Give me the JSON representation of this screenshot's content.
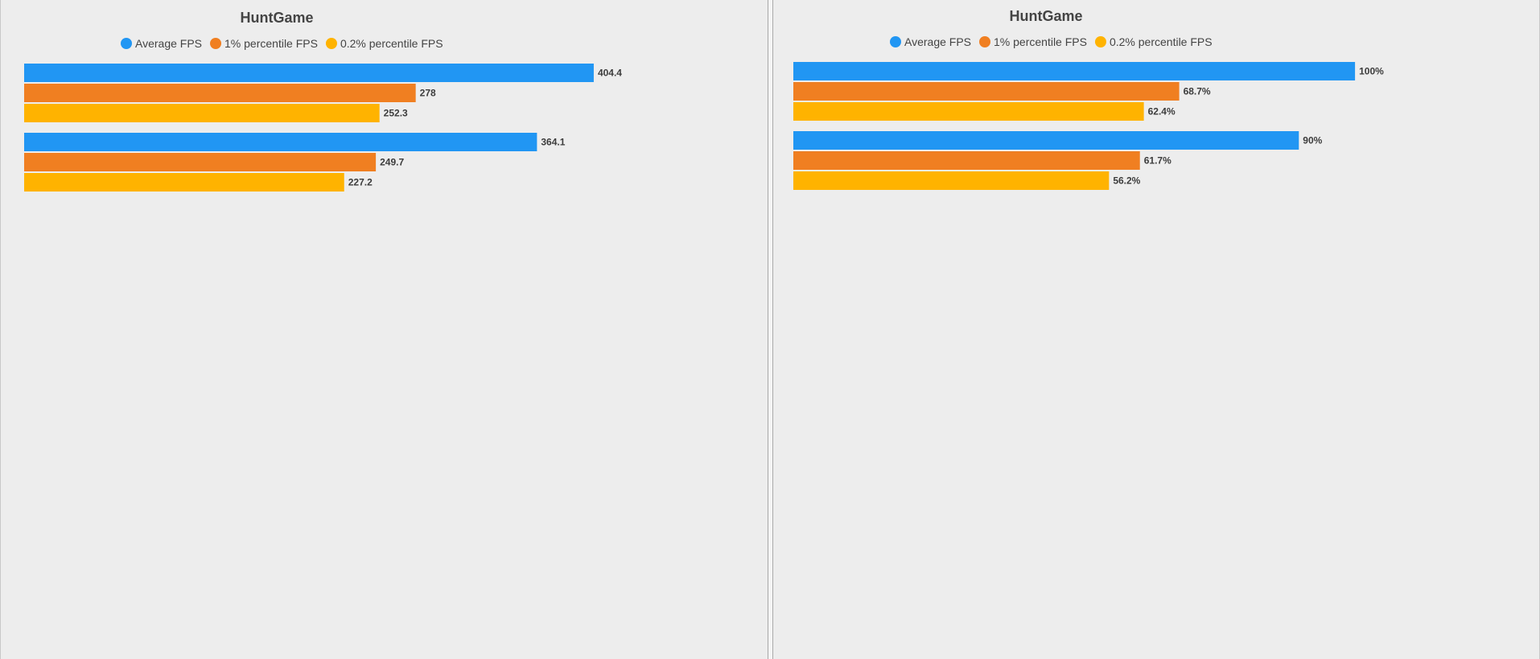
{
  "chart_data": [
    {
      "type": "bar",
      "orientation": "horizontal",
      "title": "HuntGame",
      "legend_position": "top",
      "grid": false,
      "xlim": [
        0,
        425
      ],
      "categories": [
        "",
        ""
      ],
      "series": [
        {
          "name": "Average FPS",
          "color": "#2196f3",
          "values": [
            404.4,
            364.1
          ],
          "labels": [
            "404.4",
            "364.1"
          ]
        },
        {
          "name": "1% percentile FPS",
          "color": "#f07f21",
          "values": [
            278,
            249.7
          ],
          "labels": [
            "278",
            "249.7"
          ]
        },
        {
          "name": "0.2% percentile FPS",
          "color": "#ffb300",
          "values": [
            252.3,
            227.2
          ],
          "labels": [
            "252.3",
            "227.2"
          ]
        }
      ]
    },
    {
      "type": "bar",
      "orientation": "horizontal",
      "title": "HuntGame",
      "legend_position": "top",
      "grid": false,
      "xlim": [
        0,
        105
      ],
      "categories": [
        "",
        ""
      ],
      "series": [
        {
          "name": "Average FPS",
          "color": "#2196f3",
          "values": [
            100,
            90
          ],
          "labels": [
            "100%",
            "90%"
          ]
        },
        {
          "name": "1% percentile FPS",
          "color": "#f07f21",
          "values": [
            68.7,
            61.7
          ],
          "labels": [
            "68.7%",
            "61.7%"
          ]
        },
        {
          "name": "0.2% percentile FPS",
          "color": "#ffb300",
          "values": [
            62.4,
            56.2
          ],
          "labels": [
            "62.4%",
            "56.2%"
          ]
        }
      ]
    }
  ]
}
